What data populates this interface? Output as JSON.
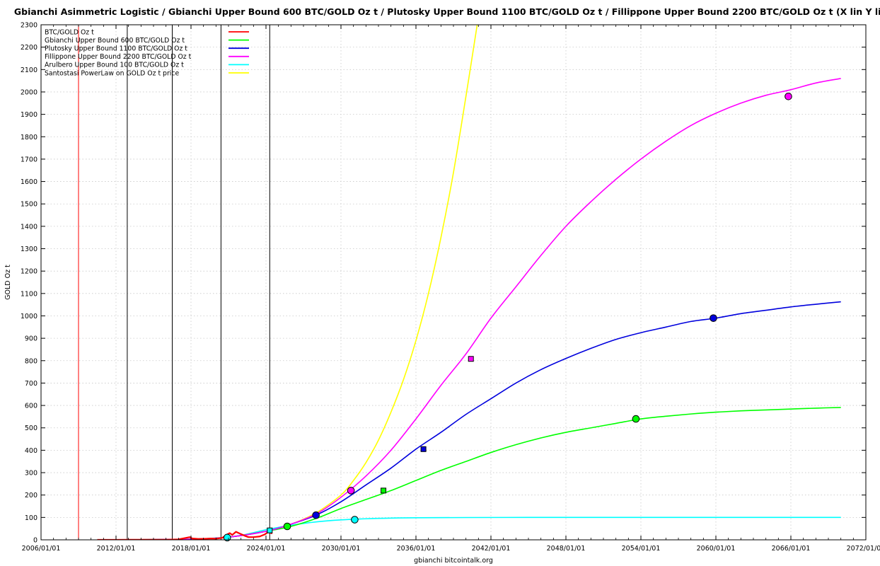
{
  "chart_data": {
    "type": "line",
    "title": "Gbianchi Asimmetric Logistic / Gbianchi Upper Bound 600  BTC/GOLD Oz t / Plutosky Upper Bound 1100  BTC/GOLD Oz t / Fillippone Upper Bound 2200  BTC/GOLD Oz t  (X lin Y lin)",
    "xlabel": "gbianchi bitcointalk.org",
    "ylabel": "GOLD Oz t",
    "xlim": [
      2006.0,
      2072.0
    ],
    "ylim": [
      0,
      2300
    ],
    "grid": true,
    "legend_position": "top-left",
    "x_ticks": [
      "2006/01/01",
      "2012/01/01",
      "2018/01/01",
      "2024/01/01",
      "2030/01/01",
      "2036/01/01",
      "2042/01/01",
      "2048/01/01",
      "2054/01/01",
      "2060/01/01",
      "2066/01/01",
      "2072/01/01"
    ],
    "y_ticks": [
      0,
      100,
      200,
      300,
      400,
      500,
      600,
      700,
      800,
      900,
      1000,
      1100,
      1200,
      1300,
      1400,
      1500,
      1600,
      1700,
      1800,
      1900,
      2000,
      2100,
      2200,
      2300
    ],
    "vertical_lines": [
      {
        "x": 2009.0,
        "color": "#ff0000"
      },
      {
        "x": 2012.9,
        "color": "#000000"
      },
      {
        "x": 2016.5,
        "color": "#000000"
      },
      {
        "x": 2020.4,
        "color": "#000000"
      },
      {
        "x": 2024.3,
        "color": "#000000"
      }
    ],
    "series": [
      {
        "name": "BTC/GOLD Oz t",
        "color": "#ff0000",
        "width": 2.2,
        "x": [
          2010.5,
          2012.0,
          2013.0,
          2014.0,
          2015.0,
          2016.0,
          2017.0,
          2017.9,
          2018.1,
          2018.6,
          2019.2,
          2019.6,
          2020.0,
          2020.5,
          2020.9,
          2021.1,
          2021.3,
          2021.6,
          2021.9,
          2022.3,
          2022.6,
          2023.0,
          2023.5,
          2023.9,
          2024.2,
          2024.5
        ],
        "y": [
          0,
          0,
          0.5,
          0.5,
          0.3,
          0.5,
          2,
          12,
          6,
          4,
          5,
          6,
          5,
          9,
          24,
          30,
          22,
          36,
          28,
          18,
          12,
          12,
          15,
          24,
          36,
          28
        ]
      },
      {
        "name": "Gbianchi Upper Bound 600  BTC/GOLD Oz t",
        "color": "#00ff00",
        "width": 1.6,
        "x": [
          2012,
          2018,
          2021,
          2024,
          2026,
          2028,
          2030,
          2032,
          2034,
          2036,
          2038,
          2040,
          2042,
          2044,
          2046,
          2048,
          2050,
          2052,
          2054,
          2056,
          2058,
          2060,
          2062,
          2064,
          2066,
          2068,
          2070
        ],
        "y": [
          0,
          3,
          12,
          38,
          60,
          95,
          140,
          180,
          220,
          265,
          310,
          350,
          390,
          425,
          455,
          480,
          500,
          520,
          540,
          552,
          562,
          570,
          576,
          580,
          584,
          588,
          591
        ]
      },
      {
        "name": "Plutosky Upper Bound 1100  BTC/GOLD Oz t",
        "color": "#0000dd",
        "width": 1.6,
        "x": [
          2012,
          2018,
          2021,
          2024,
          2026,
          2028,
          2030,
          2032,
          2034,
          2036,
          2038,
          2040,
          2042,
          2044,
          2046,
          2048,
          2050,
          2052,
          2054,
          2056,
          2058,
          2060,
          2062,
          2064,
          2066,
          2068,
          2070
        ],
        "y": [
          0,
          3,
          12,
          38,
          70,
          110,
          170,
          245,
          320,
          405,
          480,
          560,
          630,
          700,
          760,
          810,
          855,
          895,
          925,
          950,
          975,
          990,
          1010,
          1025,
          1040,
          1052,
          1063
        ]
      },
      {
        "name": "Fillippone Upper Bound 2200  BTC/GOLD Oz t",
        "color": "#ff00ff",
        "width": 1.6,
        "x": [
          2012,
          2018,
          2021,
          2024,
          2026,
          2028,
          2030,
          2032,
          2034,
          2036,
          2038,
          2040,
          2042,
          2044,
          2046,
          2048,
          2050,
          2052,
          2054,
          2056,
          2058,
          2060,
          2062,
          2064,
          2066,
          2068,
          2070
        ],
        "y": [
          0,
          3,
          12,
          38,
          70,
          115,
          190,
          285,
          400,
          540,
          690,
          830,
          990,
          1130,
          1270,
          1400,
          1510,
          1610,
          1700,
          1780,
          1850,
          1905,
          1950,
          1985,
          2010,
          2040,
          2060
        ]
      },
      {
        "name": "Arulbero Upper Bound 100  BTC/GOLD Oz t",
        "color": "#00ffff",
        "width": 1.6,
        "x": [
          2010.5,
          2014,
          2018,
          2020,
          2022,
          2024,
          2026,
          2028,
          2030,
          2032,
          2034,
          2036,
          2040,
          2045,
          2050,
          2055,
          2060,
          2065,
          2070
        ],
        "y": [
          0,
          0.5,
          3,
          8,
          20,
          45,
          65,
          80,
          89,
          94,
          97,
          98.5,
          99.5,
          100,
          100,
          100,
          100,
          100,
          100
        ]
      },
      {
        "name": "Santostasi PowerLaw on GOLD Oz t price",
        "color": "#ffff00",
        "width": 1.6,
        "x": [
          2012,
          2018,
          2021,
          2024,
          2026,
          2028,
          2030,
          2031,
          2032,
          2033,
          2034,
          2035,
          2036,
          2037,
          2038,
          2039,
          2040,
          2040.9
        ],
        "y": [
          0,
          3,
          12,
          38,
          70,
          120,
          200,
          265,
          345,
          445,
          570,
          715,
          890,
          1100,
          1350,
          1640,
          1980,
          2300
        ]
      }
    ],
    "markers": [
      {
        "series": "Gbianchi Upper Bound 600  BTC/GOLD Oz t",
        "shape": "circle",
        "x": 2025.7,
        "y": 60
      },
      {
        "series": "Gbianchi Upper Bound 600  BTC/GOLD Oz t",
        "shape": "square",
        "x": 2033.4,
        "y": 220
      },
      {
        "series": "Gbianchi Upper Bound 600  BTC/GOLD Oz t",
        "shape": "circle",
        "x": 2053.6,
        "y": 540
      },
      {
        "series": "Plutosky Upper Bound 1100  BTC/GOLD Oz t",
        "shape": "circle",
        "x": 2028.0,
        "y": 110
      },
      {
        "series": "Plutosky Upper Bound 1100  BTC/GOLD Oz t",
        "shape": "square",
        "x": 2036.6,
        "y": 405
      },
      {
        "series": "Plutosky Upper Bound 1100  BTC/GOLD Oz t",
        "shape": "circle",
        "x": 2059.8,
        "y": 990
      },
      {
        "series": "Fillippone Upper Bound 2200  BTC/GOLD Oz t",
        "shape": "circle",
        "x": 2030.8,
        "y": 220
      },
      {
        "series": "Fillippone Upper Bound 2200  BTC/GOLD Oz t",
        "shape": "square",
        "x": 2040.4,
        "y": 808
      },
      {
        "series": "Fillippone Upper Bound 2200  BTC/GOLD Oz t",
        "shape": "circle",
        "x": 2065.8,
        "y": 1980
      },
      {
        "series": "Arulbero Upper Bound 100  BTC/GOLD Oz t",
        "shape": "circle",
        "x": 2020.9,
        "y": 10
      },
      {
        "series": "Arulbero Upper Bound 100  BTC/GOLD Oz t",
        "shape": "square",
        "x": 2024.3,
        "y": 42
      },
      {
        "series": "Arulbero Upper Bound 100  BTC/GOLD Oz t",
        "shape": "circle",
        "x": 2031.1,
        "y": 90
      }
    ]
  }
}
